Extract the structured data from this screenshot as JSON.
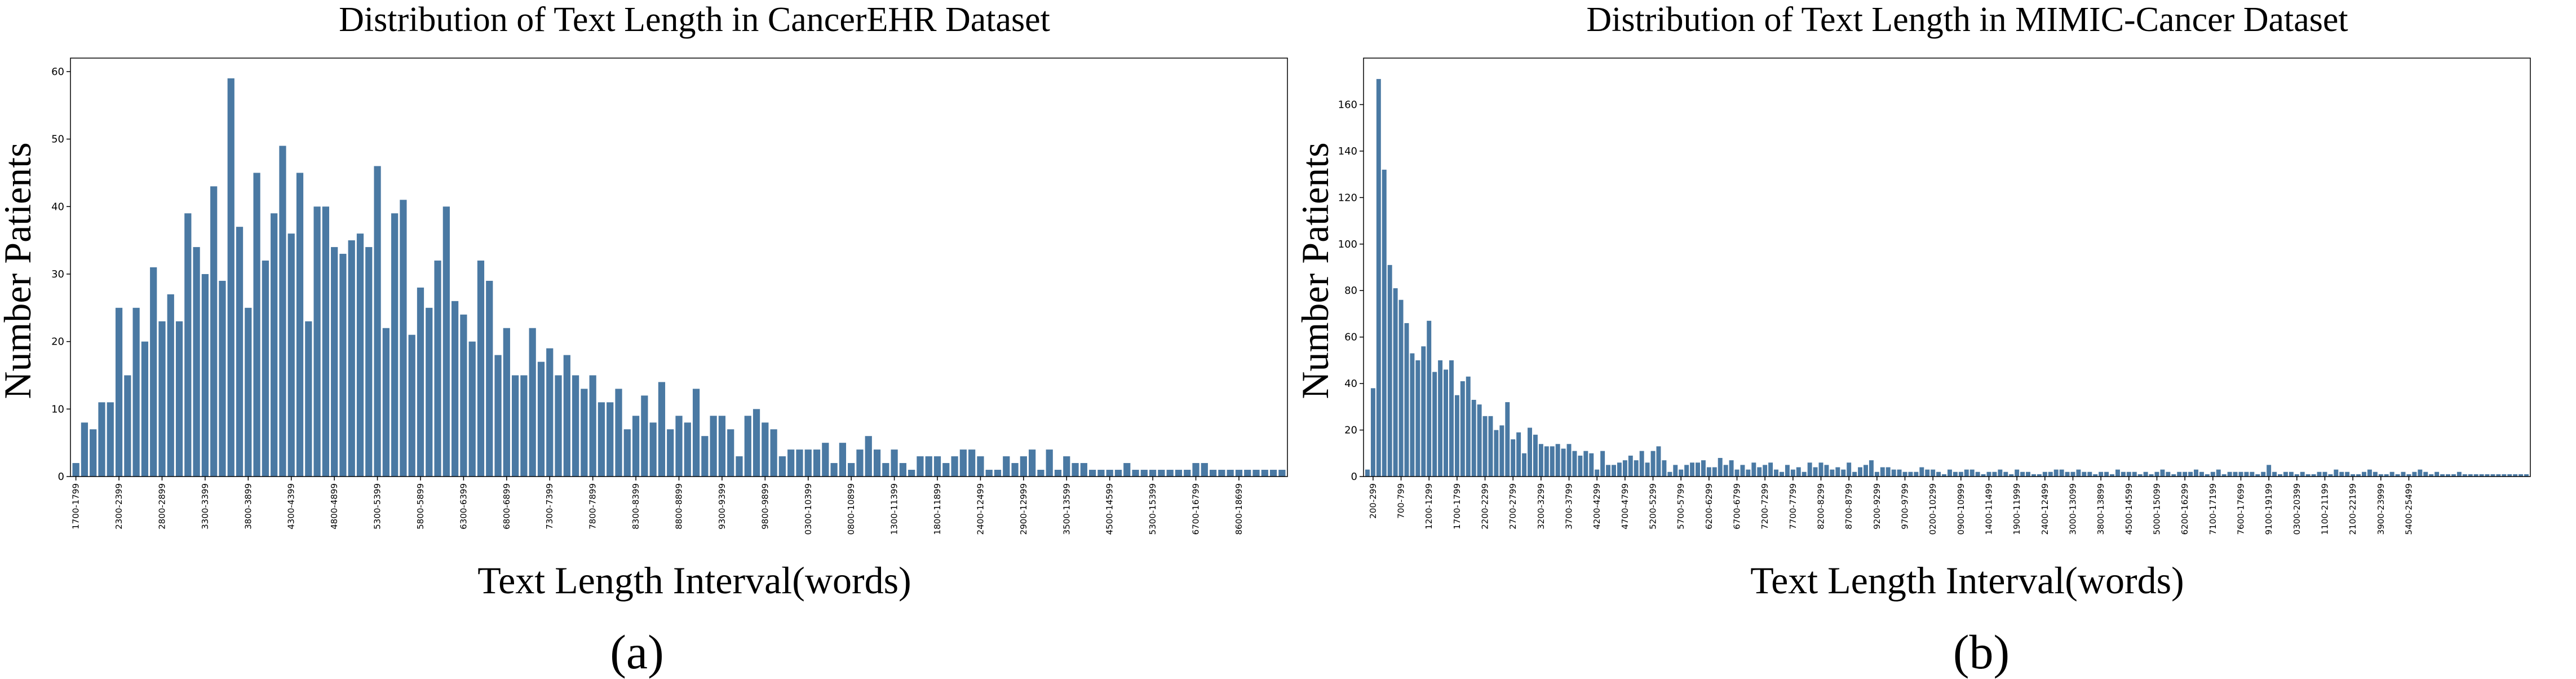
{
  "chart_data": [
    {
      "type": "bar",
      "panel_label": "(a)",
      "title": "Distribution of Text Length in  CancerEHR Dataset",
      "xlabel": "Text Length Interval(words)",
      "ylabel": "Number Patients",
      "ylim": [
        0,
        62
      ],
      "yticks": [
        0,
        10,
        20,
        30,
        40,
        50,
        60
      ],
      "bar_color": "#4a79a3",
      "tick_labels": [
        "1700-1799",
        "2300-2399",
        "2800-2899",
        "3300-3399",
        "3800-3899",
        "4300-4399",
        "4800-4899",
        "5300-5399",
        "5800-5899",
        "6300-6399",
        "6800-6899",
        "7300-7399",
        "7800-7899",
        "8300-8399",
        "8800-8899",
        "9300-9399",
        "9800-9899",
        "0300-10399",
        "0800-10899",
        "1300-11399",
        "1800-11899",
        "2400-12499",
        "2900-12999",
        "3500-13599",
        "4500-14599",
        "5300-15399",
        "6700-16799",
        "8600-18699"
      ],
      "tick_every": 5,
      "tick_offset": 0,
      "values": [
        2,
        8,
        7,
        11,
        11,
        25,
        15,
        25,
        20,
        31,
        23,
        27,
        23,
        39,
        34,
        30,
        43,
        29,
        59,
        37,
        25,
        45,
        32,
        39,
        49,
        36,
        45,
        23,
        40,
        40,
        34,
        33,
        35,
        36,
        34,
        46,
        22,
        39,
        41,
        21,
        28,
        25,
        32,
        40,
        26,
        24,
        20,
        32,
        29,
        18,
        22,
        15,
        15,
        22,
        17,
        19,
        15,
        18,
        15,
        13,
        15,
        11,
        11,
        13,
        7,
        9,
        12,
        8,
        14,
        7,
        9,
        8,
        13,
        6,
        9,
        9,
        7,
        3,
        9,
        10,
        8,
        7,
        3,
        4,
        4,
        4,
        4,
        5,
        2,
        5,
        2,
        4,
        6,
        4,
        2,
        4,
        2,
        1,
        3,
        3,
        3,
        2,
        3,
        4,
        4,
        3,
        1,
        1,
        3,
        2,
        3,
        4,
        1,
        4,
        1,
        3,
        2,
        2,
        1,
        1,
        1,
        1,
        2,
        1,
        1,
        1,
        1,
        1,
        1,
        1,
        2,
        2,
        1,
        1,
        1,
        1,
        1,
        1,
        1,
        1,
        1
      ]
    },
    {
      "type": "bar",
      "panel_label": "(b)",
      "title": "Distribution of Text Length in MIMIC-Cancer Dataset",
      "xlabel": "Text Length Interval(words)",
      "ylabel": "Number Patients",
      "ylim": [
        0,
        180
      ],
      "yticks": [
        0,
        20,
        40,
        60,
        80,
        100,
        120,
        140,
        160
      ],
      "bar_color": "#4a79a3",
      "tick_labels": [
        "200-299",
        "700-799",
        "1200-1299",
        "1700-1799",
        "2200-2299",
        "2700-2799",
        "3200-3299",
        "3700-3799",
        "4200-4299",
        "4700-4799",
        "5200-5299",
        "5700-5799",
        "6200-6299",
        "6700-6799",
        "7200-7299",
        "7700-7799",
        "8200-8299",
        "8700-8799",
        "9200-9299",
        "9700-9799",
        "0200-10299",
        "0900-10999",
        "1400-11499",
        "1900-11999",
        "2400-12499",
        "3000-13099",
        "3800-13899",
        "4500-14599",
        "5000-15099",
        "6200-16299",
        "7100-17199",
        "7600-17699",
        "9100-19199",
        "0300-20399",
        "1100-21199",
        "2100-22199",
        "3900-23999",
        "5400-25499"
      ],
      "tick_every": 5,
      "tick_offset": 1,
      "values": [
        3,
        38,
        171,
        132,
        91,
        81,
        76,
        66,
        53,
        50,
        56,
        67,
        45,
        50,
        46,
        50,
        35,
        41,
        43,
        33,
        31,
        26,
        26,
        20,
        22,
        32,
        16,
        19,
        10,
        21,
        18,
        14,
        13,
        13,
        14,
        12,
        14,
        11,
        9,
        11,
        10,
        3,
        11,
        5,
        5,
        6,
        7,
        9,
        7,
        11,
        6,
        11,
        13,
        7,
        2,
        5,
        3,
        5,
        6,
        6,
        7,
        4,
        4,
        8,
        5,
        7,
        3,
        5,
        3,
        6,
        4,
        5,
        6,
        3,
        2,
        5,
        3,
        4,
        2,
        6,
        4,
        6,
        5,
        3,
        4,
        3,
        6,
        2,
        4,
        5,
        7,
        2,
        4,
        4,
        3,
        3,
        2,
        2,
        2,
        4,
        3,
        3,
        2,
        1,
        3,
        2,
        2,
        3,
        3,
        2,
        1,
        2,
        2,
        3,
        2,
        1,
        3,
        2,
        2,
        1,
        1,
        2,
        2,
        3,
        3,
        2,
        2,
        3,
        2,
        2,
        1,
        2,
        2,
        1,
        3,
        2,
        2,
        2,
        1,
        2,
        1,
        2,
        3,
        2,
        1,
        2,
        2,
        2,
        3,
        2,
        1,
        2,
        3,
        1,
        2,
        2,
        2,
        2,
        2,
        1,
        2,
        5,
        2,
        1,
        2,
        2,
        1,
        2,
        1,
        1,
        2,
        2,
        1,
        3,
        2,
        2,
        1,
        1,
        2,
        3,
        2,
        1,
        1,
        2,
        1,
        2,
        1,
        2,
        3,
        2,
        1,
        2,
        1,
        1,
        1,
        2,
        1,
        1,
        1,
        1,
        1,
        1,
        1,
        1,
        1,
        1,
        1,
        1
      ]
    }
  ]
}
